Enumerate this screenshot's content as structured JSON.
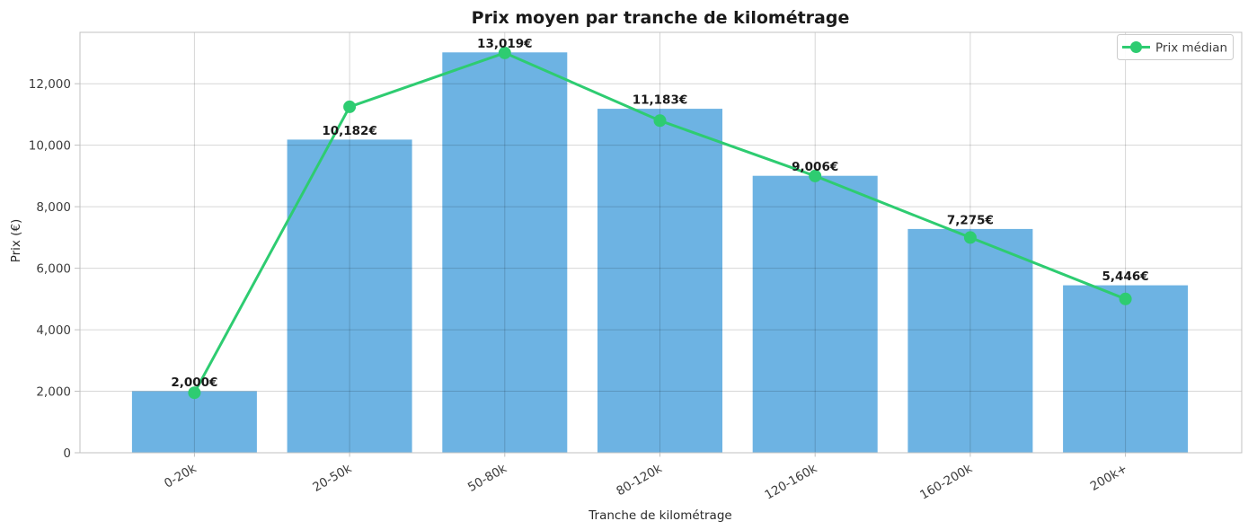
{
  "chart_data": {
    "type": "bar",
    "title": "Prix moyen par tranche de kilométrage",
    "xlabel": "Tranche de kilométrage",
    "ylabel": "Prix (€)",
    "categories": [
      "0-20k",
      "20-50k",
      "50-80k",
      "80-120k",
      "120-160k",
      "160-200k",
      "200k+"
    ],
    "series": [
      {
        "type": "bar",
        "values": [
          2000,
          10182,
          13019,
          11183,
          9006,
          7275,
          5446
        ],
        "labels": [
          "2,000€",
          "10,182€",
          "13,019€",
          "11,183€",
          "9,006€",
          "7,275€",
          "5,446€"
        ],
        "color": "#6db3e3"
      },
      {
        "type": "line",
        "name": "Prix médian",
        "values": [
          1950,
          11250,
          13000,
          10800,
          9000,
          7000,
          5000
        ],
        "color": "#2ecc71"
      }
    ],
    "legend": {
      "entries": [
        "Prix médian"
      ],
      "position": "upper right"
    },
    "ylim": [
      0,
      13670
    ],
    "yticks": {
      "values": [
        0,
        2000,
        4000,
        6000,
        8000,
        10000,
        12000
      ],
      "labels": [
        "0",
        "2,000",
        "4,000",
        "6,000",
        "8,000",
        "10,000",
        "12,000"
      ]
    },
    "grid": true,
    "xtick_rotation": 30
  },
  "colors": {
    "bar": "#6db3e3",
    "line": "#2ecc71",
    "grid": "rgba(0,0,0,0.16)",
    "spine": "#c0c0c0",
    "legend_border": "#cccccc",
    "background": "#ffffff"
  }
}
